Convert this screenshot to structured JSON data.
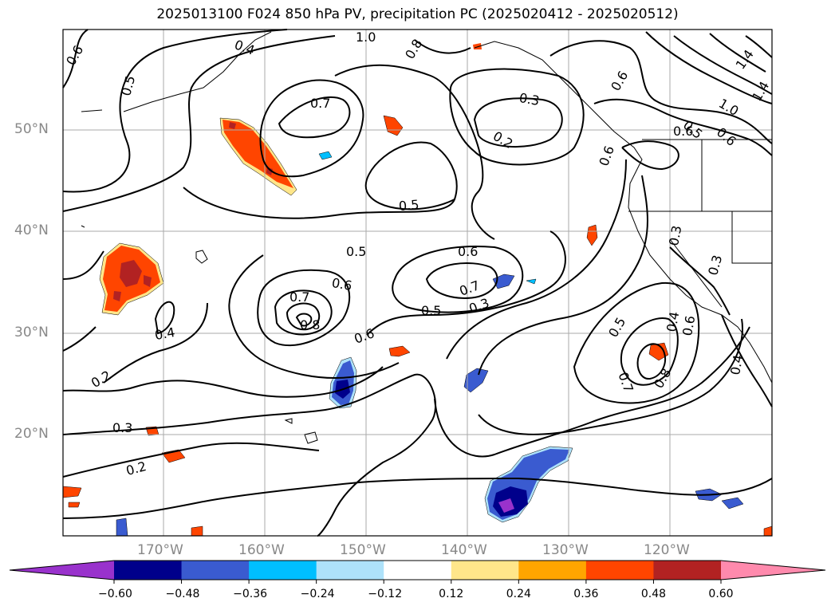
{
  "title": "2025013100 F024 850 hPa PV, precipitation PC (2025020412 - 2025020512)",
  "lat_labels": [
    "50°N",
    "40°N",
    "30°N",
    "20°N"
  ],
  "lon_labels": [
    "170°W",
    "160°W",
    "150°W",
    "140°W",
    "130°W",
    "120°W"
  ],
  "colorbar": {
    "ticks": [
      "−0.60",
      "−0.48",
      "−0.36",
      "−0.24",
      "−0.12",
      "0.12",
      "0.24",
      "0.36",
      "0.48",
      "0.60"
    ],
    "colors": [
      "#9932cc",
      "#00008b",
      "#3a5bd0",
      "#00bfff",
      "#aee2fa",
      "#ffffff",
      "#ffe68a",
      "#ffa500",
      "#ff4500",
      "#b22222",
      "#ff8aad"
    ]
  },
  "contour_labels": [
    "0.6",
    "0.4",
    "1.0",
    "0.8",
    "0.5",
    "0.7",
    "0.3",
    "0.2",
    "0.6",
    "0.5",
    "0.6",
    "1.4",
    "1.0",
    "1.4",
    "0.5",
    "0.6",
    "0.6",
    "0.6",
    "0.5",
    "0.6",
    "0.7",
    "0.5",
    "0.3",
    "0.8",
    "0.7",
    "0.6",
    "0.4",
    "0.4",
    "0.2",
    "0.3",
    "0.2",
    "0.3",
    "0.3",
    "0.5",
    "0.6",
    "0.7",
    "0.8",
    "0.4"
  ]
}
